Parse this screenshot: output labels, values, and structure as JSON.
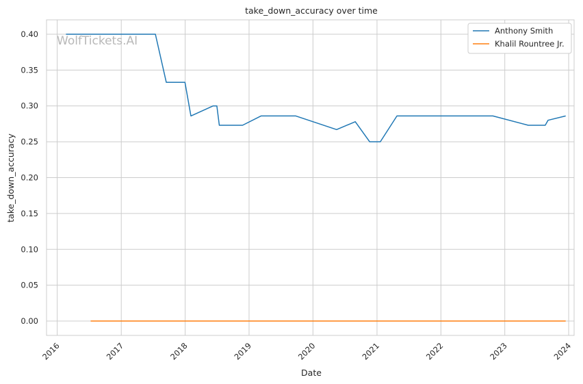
{
  "watermark": "WolfTickets.AI",
  "chart_data": {
    "type": "line",
    "title": "take_down_accuracy over time",
    "xlabel": "Date",
    "ylabel": "take_down_accuracy",
    "xlim": [
      "2015-11-01",
      "2024-02-01"
    ],
    "ylim": [
      -0.02,
      0.42
    ],
    "x_ticks": [
      "2016",
      "2017",
      "2018",
      "2019",
      "2020",
      "2021",
      "2022",
      "2023",
      "2024"
    ],
    "y_ticks": [
      "0.00",
      "0.05",
      "0.10",
      "0.15",
      "0.20",
      "0.25",
      "0.30",
      "0.35",
      "0.40"
    ],
    "grid": true,
    "legend_position": "top-right",
    "series": [
      {
        "name": "Anthony Smith",
        "color": "#1f77b4",
        "points": [
          [
            "2016-02-20",
            0.4
          ],
          [
            "2017-07-15",
            0.4
          ],
          [
            "2017-09-15",
            0.333
          ],
          [
            "2017-12-31",
            0.333
          ],
          [
            "2018-02-03",
            0.286
          ],
          [
            "2018-06-10",
            0.3
          ],
          [
            "2018-07-01",
            0.3
          ],
          [
            "2018-07-15",
            0.273
          ],
          [
            "2018-11-25",
            0.273
          ],
          [
            "2019-03-10",
            0.286
          ],
          [
            "2019-09-25",
            0.286
          ],
          [
            "2020-05-15",
            0.267
          ],
          [
            "2020-08-30",
            0.278
          ],
          [
            "2020-11-20",
            0.25
          ],
          [
            "2021-01-20",
            0.25
          ],
          [
            "2021-04-25",
            0.286
          ],
          [
            "2022-10-25",
            0.286
          ],
          [
            "2023-05-15",
            0.273
          ],
          [
            "2023-08-20",
            0.273
          ],
          [
            "2023-09-05",
            0.28
          ],
          [
            "2023-12-15",
            0.286
          ]
        ]
      },
      {
        "name": "Khalil Rountree Jr.",
        "color": "#ff7f0e",
        "points": [
          [
            "2016-07-10",
            0.0
          ],
          [
            "2023-12-15",
            0.0
          ]
        ]
      }
    ]
  }
}
